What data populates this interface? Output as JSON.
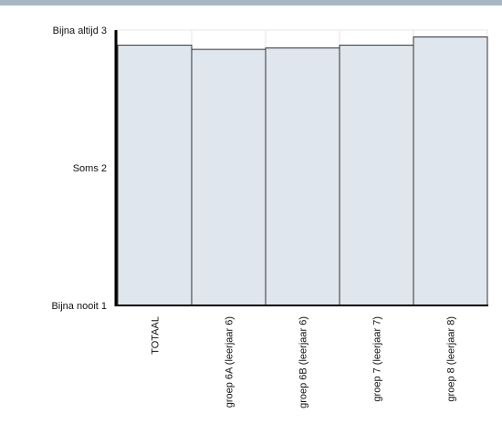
{
  "chart_data": {
    "type": "bar",
    "categories": [
      "TOTAAL",
      "groep 6A (leerjaar 6)",
      "groep 6B (leerjaar 6)",
      "groep 7 (leerjaar 7)",
      "groep 8 (leerjaar 8)"
    ],
    "values": [
      2.89,
      2.86,
      2.87,
      2.89,
      2.95
    ],
    "ylim": [
      1,
      3
    ],
    "yticks": [
      {
        "value": 3,
        "label": "Bijna altijd 3"
      },
      {
        "value": 2,
        "label": "Soms 2"
      },
      {
        "value": 1,
        "label": "Bijna nooit 1"
      }
    ],
    "grid": true,
    "colors": {
      "bar_fill": "#dfe6ee",
      "bar_stroke": "#333333",
      "gridline": "#e6e6e6",
      "axis": "#000000",
      "header": "#a9b7c3"
    }
  }
}
